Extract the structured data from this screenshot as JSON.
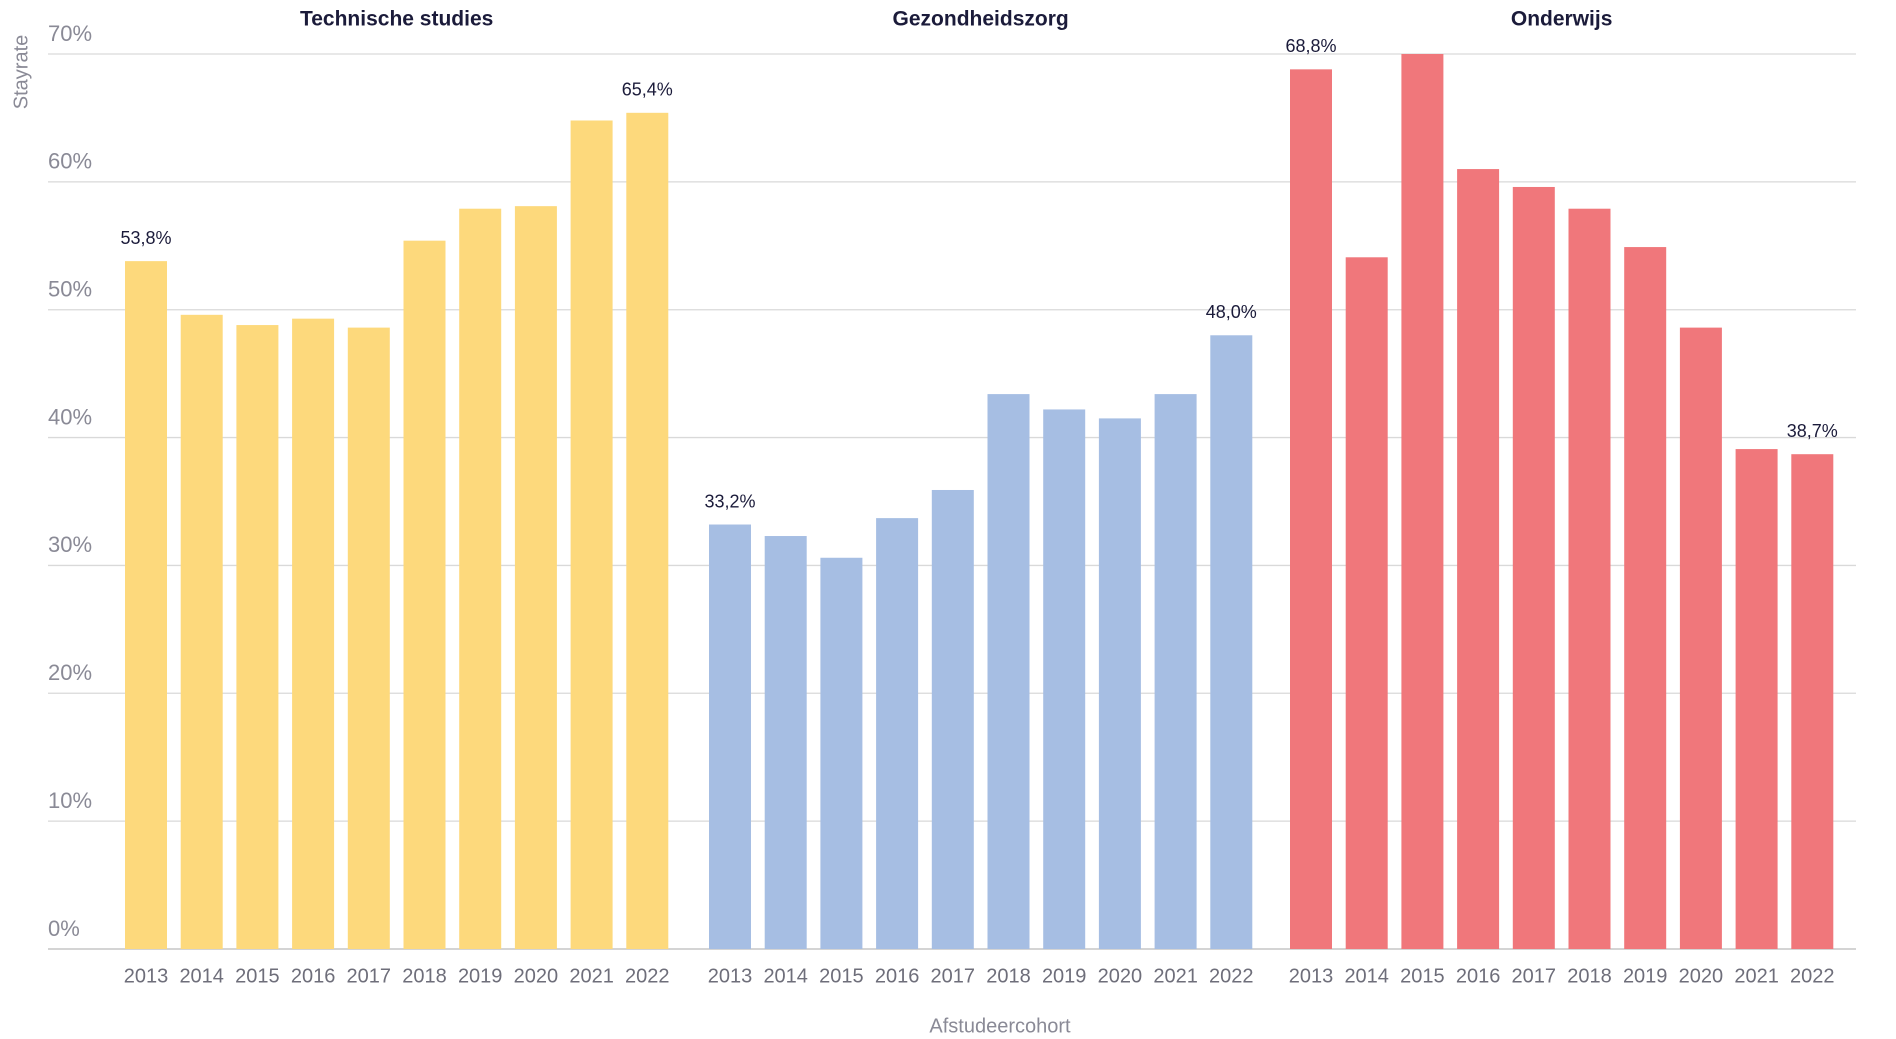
{
  "chart_data": {
    "type": "bar",
    "y_label": "Stayrate",
    "x_label": "Afstudeercohort",
    "ylim": [
      0,
      70
    ],
    "yticks": [
      {
        "value": 0,
        "label": "0%"
      },
      {
        "value": 10,
        "label": "10%"
      },
      {
        "value": 20,
        "label": "20%"
      },
      {
        "value": 30,
        "label": "30%"
      },
      {
        "value": 40,
        "label": "40%"
      },
      {
        "value": 50,
        "label": "50%"
      },
      {
        "value": 60,
        "label": "60%"
      },
      {
        "value": 70,
        "label": "70%"
      }
    ],
    "grid": true,
    "panels": [
      {
        "title": "Technische studies",
        "color": "#fdd97c",
        "categories": [
          "2013",
          "2014",
          "2015",
          "2016",
          "2017",
          "2018",
          "2019",
          "2020",
          "2021",
          "2022"
        ],
        "values": [
          53.8,
          49.6,
          48.8,
          49.3,
          48.6,
          55.4,
          57.9,
          58.1,
          64.8,
          65.4
        ],
        "value_labels": [
          "53,8%",
          null,
          null,
          null,
          null,
          null,
          null,
          null,
          null,
          "65,4%"
        ]
      },
      {
        "title": "Gezondheidszorg",
        "color": "#a6bee3",
        "categories": [
          "2013",
          "2014",
          "2015",
          "2016",
          "2017",
          "2018",
          "2019",
          "2020",
          "2021",
          "2022"
        ],
        "values": [
          33.2,
          32.3,
          30.6,
          33.7,
          35.9,
          43.4,
          42.2,
          41.5,
          43.4,
          48.0
        ],
        "value_labels": [
          "33,2%",
          null,
          null,
          null,
          null,
          null,
          null,
          null,
          null,
          "48,0%"
        ]
      },
      {
        "title": "Onderwijs",
        "color": "#f0777b",
        "categories": [
          "2013",
          "2014",
          "2015",
          "2016",
          "2017",
          "2018",
          "2019",
          "2020",
          "2021",
          "2022"
        ],
        "values": [
          68.8,
          54.1,
          70.0,
          61.0,
          59.6,
          57.9,
          54.9,
          48.6,
          39.1,
          38.7
        ],
        "value_labels": [
          "68,8%",
          null,
          null,
          null,
          null,
          null,
          null,
          null,
          null,
          "38,7%"
        ]
      }
    ]
  }
}
